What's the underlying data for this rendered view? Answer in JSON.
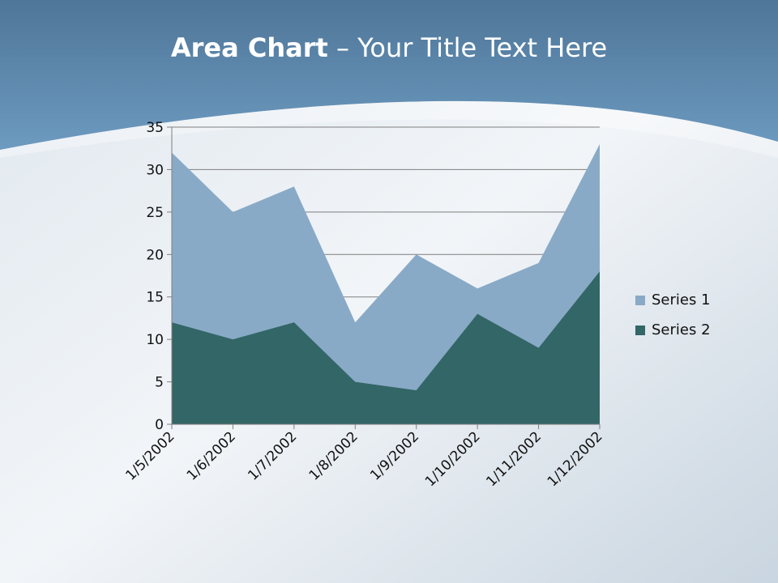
{
  "slide": {
    "title_bold": "Area Chart",
    "title_rest": " – Your Title Text Here"
  },
  "colors": {
    "series1": "#88aac7",
    "series2": "#336666",
    "header": "#5f8db3"
  },
  "chart_data": {
    "type": "area",
    "stacked": false,
    "categories": [
      "1/5/2002",
      "1/6/2002",
      "1/7/2002",
      "1/8/2002",
      "1/9/2002",
      "1/10/2002",
      "1/11/2002",
      "1/12/2002"
    ],
    "series": [
      {
        "name": "Series 1",
        "values": [
          32,
          25,
          28,
          12,
          20,
          16,
          19,
          33
        ]
      },
      {
        "name": "Series 2",
        "values": [
          12,
          10,
          12,
          5,
          4,
          13,
          9,
          18
        ]
      }
    ],
    "yticks": [
      "0",
      "5",
      "10",
      "15",
      "20",
      "25",
      "30",
      "35"
    ],
    "ylim": [
      0,
      35
    ],
    "grid": true,
    "legend": "right"
  }
}
